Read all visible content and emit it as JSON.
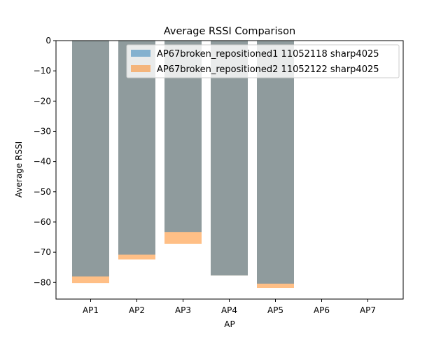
{
  "chart_data": {
    "type": "bar",
    "title": "Average RSSI Comparison",
    "xlabel": "AP",
    "ylabel": "Average RSSI",
    "categories": [
      "AP1",
      "AP2",
      "AP3",
      "AP4",
      "AP5",
      "AP6",
      "AP7"
    ],
    "ylim": [
      -85.5,
      0
    ],
    "yticks": [
      0,
      -10,
      -20,
      -30,
      -40,
      -50,
      -60,
      -70,
      -80
    ],
    "ytick_labels": [
      "0",
      "−10",
      "−20",
      "−30",
      "−40",
      "−50",
      "−60",
      "−70",
      "−80"
    ],
    "series": [
      {
        "name": "AP67broken_repositioned1 11052118 sharp4025",
        "color": "#1f77b4",
        "alpha": 0.5,
        "values": [
          -78.0,
          -70.8,
          -63.3,
          -77.7,
          -80.4,
          null,
          null
        ]
      },
      {
        "name": "AP67broken_repositioned2 11052122 sharp4025",
        "color": "#ff7f0e",
        "alpha": 0.5,
        "values": [
          -80.2,
          -72.4,
          -67.2,
          -77.7,
          -81.8,
          null,
          null
        ]
      }
    ],
    "legend_position": "top-right",
    "grid": false
  }
}
